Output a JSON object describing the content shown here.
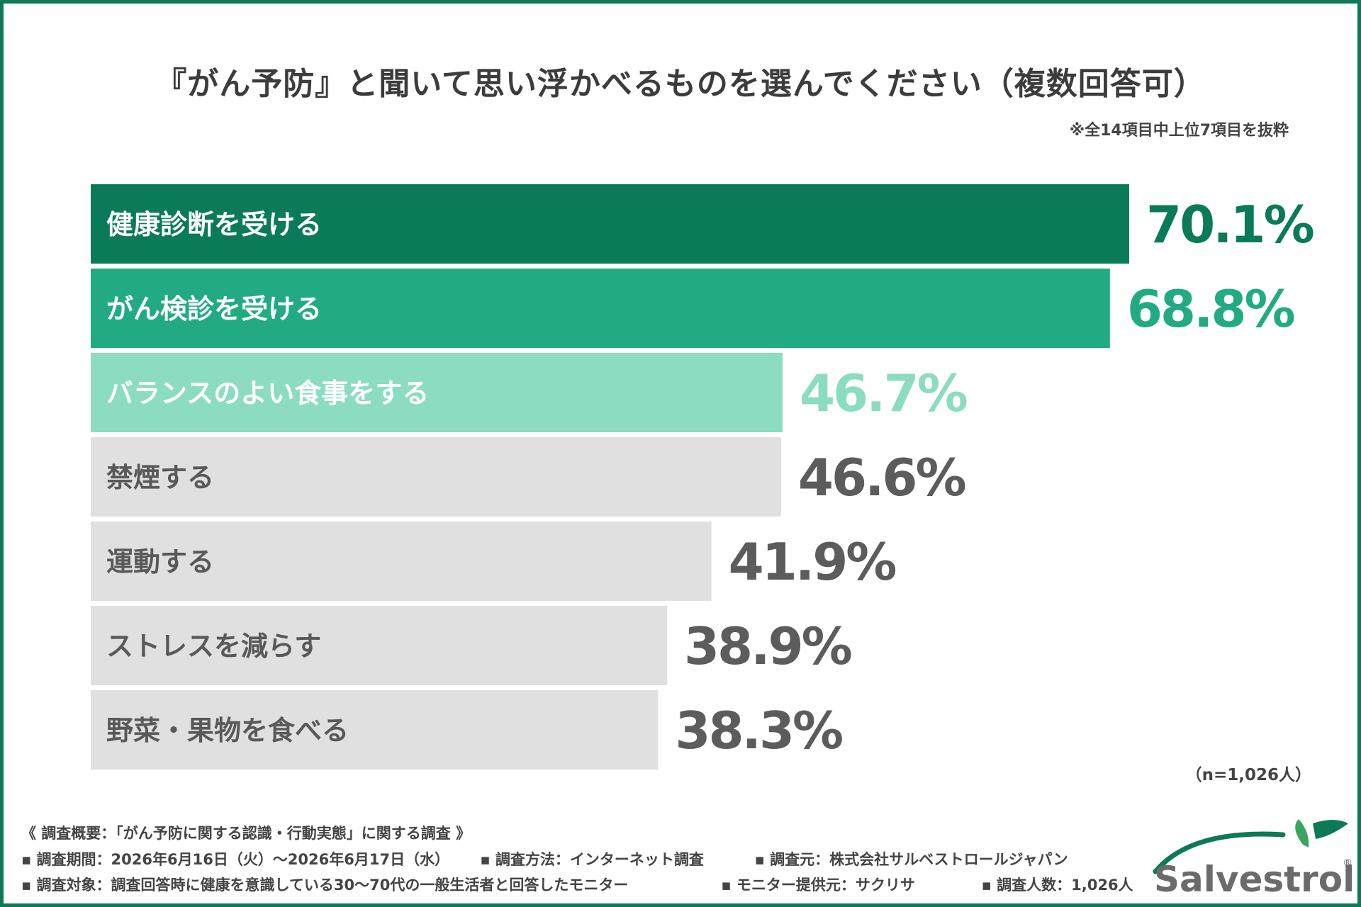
{
  "title": "『がん予防』と聞いて思い浮かべるものを選んでください（複数回答可）",
  "note": "※全14項目中上位7項目を抜粋",
  "sample": "（n=1,026人）",
  "colors": {
    "top1": "#0a7a59",
    "top2": "#22ab82",
    "top3": "#8bdcc1",
    "other": "#e0e0e0",
    "label_light": "#ffffff",
    "label_dark": "#595959",
    "value_other": "#5c5c5c"
  },
  "chart_data": {
    "type": "bar",
    "orientation": "horizontal",
    "categories": [
      "健康診断を受ける",
      "がん検診を受ける",
      "バランスのよい食事をする",
      "禁煙する",
      "運動する",
      "ストレスを減らす",
      "野菜・果物を食べる"
    ],
    "values": [
      70.1,
      68.8,
      46.7,
      46.6,
      41.9,
      38.9,
      38.3
    ],
    "value_labels": [
      "70.1%",
      "68.8%",
      "46.7%",
      "46.6%",
      "41.9%",
      "38.9%",
      "38.3%"
    ],
    "unit": "%",
    "xlim": [
      0,
      100
    ],
    "grid": false,
    "legend": "none"
  },
  "footer": {
    "survey_title": "《 調査概要：「がん予防に関する認識・行動実態」に関する調査 》",
    "period": "▪ 調査期間：2026年6月16日（火）～2026年6月17日（水）",
    "method": "▪ 調査方法：インターネット調査",
    "source": "▪ 調査元：株式会社サルベストロールジャパン",
    "target": "▪ 調査対象：調査回答時に健康を意識している30～70代の一般生活者と回答したモニター",
    "provider": "▪ モニター提供元：サクリサ",
    "count": "▪ 調査人数：1,026人"
  },
  "logo": {
    "text": "Salvestrol",
    "mark": "®"
  }
}
